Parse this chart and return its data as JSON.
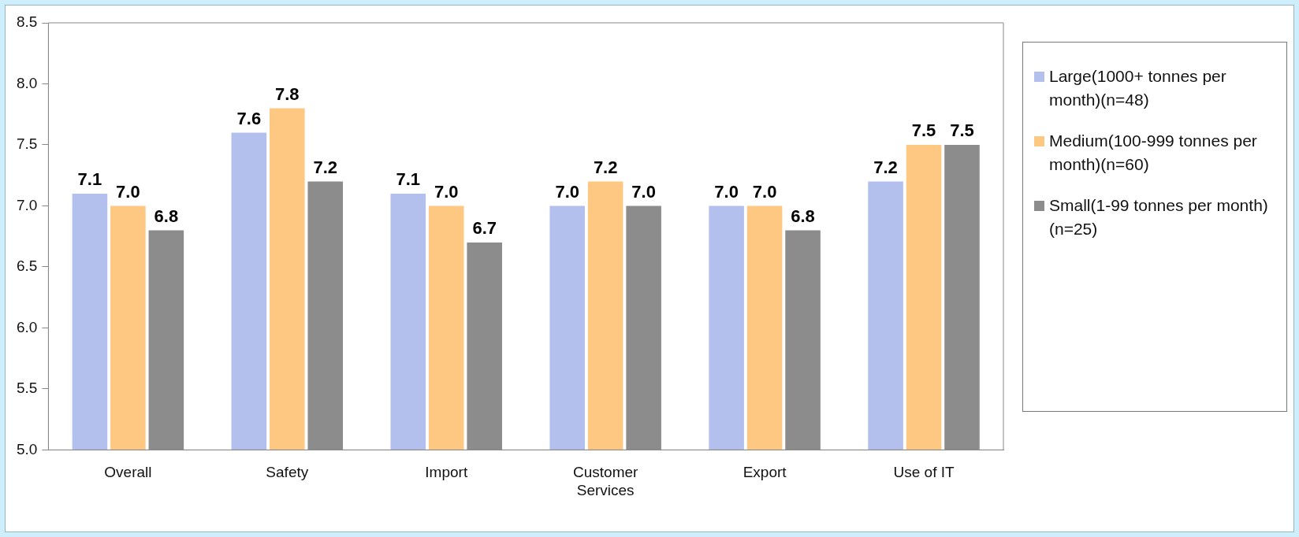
{
  "chart_data": {
    "type": "bar",
    "categories": [
      "Overall",
      "Safety",
      "Import",
      "Customer Services",
      "Export",
      "Use of IT"
    ],
    "series": [
      {
        "name": "Large(1000+ tonnes per month)(n=48)",
        "color": "#b3c0ee",
        "values": [
          7.1,
          7.6,
          7.1,
          7.0,
          7.0,
          7.2
        ],
        "value_labels": [
          "7.1",
          "7.6",
          "7.1",
          "7.0",
          "7.0",
          "7.2"
        ]
      },
      {
        "name": "Medium(100-999 tonnes per month)(n=60)",
        "color": "#ffc882",
        "values": [
          7.0,
          7.8,
          7.0,
          7.2,
          7.0,
          7.5
        ],
        "value_labels": [
          "7.0",
          "7.8",
          "7.0",
          "7.2",
          "7.0",
          "7.5"
        ]
      },
      {
        "name": "Small(1-99 tonnes per month)(n=25)",
        "color": "#8c8c8c",
        "values": [
          6.8,
          7.2,
          6.7,
          7.0,
          6.8,
          7.5
        ],
        "value_labels": [
          "6.8",
          "7.2",
          "6.7",
          "7.0",
          "6.8",
          "7.5"
        ]
      }
    ],
    "ylim": [
      5,
      8.5
    ],
    "yticks": [
      {
        "value": 5,
        "label": "5.0"
      },
      {
        "value": 5.5,
        "label": "5.5"
      },
      {
        "value": 6,
        "label": "6.0"
      },
      {
        "value": 6.5,
        "label": "6.5"
      },
      {
        "value": 7,
        "label": "7.0"
      },
      {
        "value": 7.5,
        "label": "7.5"
      },
      {
        "value": 8,
        "label": "8.0"
      },
      8.5
    ],
    "grid": false,
    "legend": "right"
  }
}
